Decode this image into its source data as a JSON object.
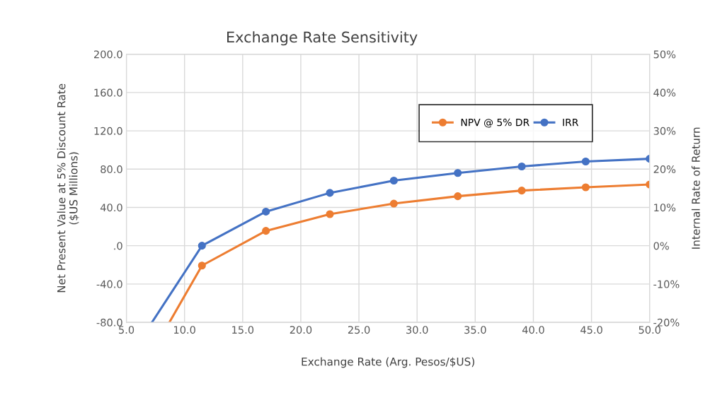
{
  "chart_data": {
    "type": "line",
    "title": "Exchange Rate Sensitivity",
    "xlabel": "Exchange Rate (Arg. Pesos/$US)",
    "ylabel": "Net Present Value at 5% Discount Rate\n($US Millions)",
    "y2label": "Internal Rate of Return",
    "x": [
      11.5,
      17.0,
      22.5,
      28.0,
      33.5,
      39.0,
      44.5,
      50.0
    ],
    "series": [
      {
        "name": "NPV @ 5% DR",
        "color": "#ed7d31",
        "values": [
          -20.7,
          15.5,
          33,
          44,
          51.7,
          57.6,
          61,
          64
        ]
      },
      {
        "name": "IRR",
        "color": "#4472c4",
        "axis": "y2",
        "values": [
          0,
          8.9,
          13.8,
          17,
          19,
          20.7,
          22,
          22.7
        ]
      },
      {
        "color": "#ed7d31",
        "x": [
          8.7,
          11.5
        ],
        "values": [
          -80,
          -20.7
        ],
        "marker": "none"
      },
      {
        "color": "#4472c4",
        "axis": "y2",
        "x": [
          7.2,
          11.5
        ],
        "values": [
          -20,
          0
        ],
        "marker": "none"
      }
    ],
    "xlim": [
      5,
      50
    ],
    "xticks": [
      {
        "value": 5,
        "label": "5.0"
      },
      {
        "value": 10,
        "label": "10.0"
      },
      {
        "value": 15,
        "label": "15.0"
      },
      {
        "value": 20,
        "label": "20.0"
      },
      {
        "value": 25,
        "label": "25.0"
      },
      {
        "value": 30,
        "label": "30.0"
      },
      {
        "value": 35,
        "label": "35.0"
      },
      {
        "value": 40,
        "label": "40.0"
      },
      {
        "value": 45,
        "label": "45.0"
      },
      {
        "value": 50,
        "label": "50.0"
      }
    ],
    "ylim": [
      -80,
      200
    ],
    "yticks": [
      {
        "value": -80,
        "label": "-80.0"
      },
      {
        "value": -40,
        "label": "-40.0"
      },
      {
        "value": 0,
        "label": ".0"
      },
      {
        "value": 40,
        "label": "40.0"
      },
      {
        "value": 80,
        "label": "80.0"
      },
      {
        "value": 120,
        "label": "120.0"
      },
      {
        "value": 160,
        "label": "160.0"
      },
      {
        "value": 200,
        "label": "200.0"
      }
    ],
    "y2lim": [
      -20,
      50
    ],
    "y2ticks": [
      {
        "value": -20,
        "label": "-20%"
      },
      {
        "value": -10,
        "label": "-10%"
      },
      {
        "value": 0,
        "label": "0%"
      },
      {
        "value": 10,
        "label": "10%"
      },
      {
        "value": 20,
        "label": "20%"
      },
      {
        "value": 30,
        "label": "30%"
      },
      {
        "value": 40,
        "label": "40%"
      },
      {
        "value": 50,
        "label": "50%"
      }
    ],
    "grid": true,
    "legend": "top right",
    "marker": "circle",
    "line_style": "solid"
  }
}
